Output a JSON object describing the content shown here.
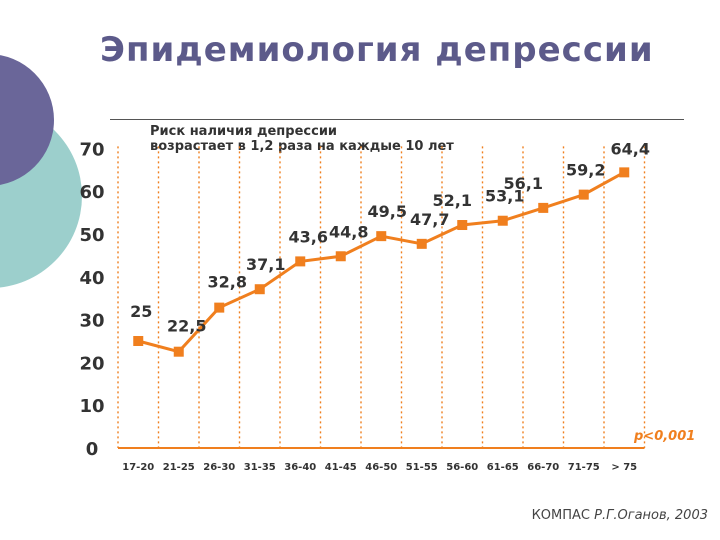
{
  "colors": {
    "accent": "#f07f1e",
    "deco_purple": "#6a6699",
    "deco_teal": "#9ccfcc",
    "title": "#5c5a8a",
    "text": "#333333"
  },
  "slide": {
    "title": "Эпидемиология депрессии",
    "note_line1": "Риск наличия депрессии",
    "note_line2": "возрастает в 1,2 раза на каждые 10 лет",
    "p_value": "p<0,001",
    "source_prefix": "КОМПАС",
    "source_author": "Р.Г.Оганов, 2003"
  },
  "chart_data": {
    "type": "line",
    "title": "",
    "xlabel": "",
    "ylabel": "",
    "ylim": [
      0,
      70
    ],
    "yticks": [
      0,
      10,
      20,
      30,
      40,
      50,
      60,
      70
    ],
    "grid": "vertical dotted",
    "categories": [
      "17-20",
      "21-25",
      "26-30",
      "31-35",
      "36-40",
      "41-45",
      "46-50",
      "51-55",
      "56-60",
      "61-65",
      "66-70",
      "71-75",
      "> 75"
    ],
    "values": [
      25,
      22.5,
      32.8,
      37.1,
      43.6,
      44.8,
      49.5,
      47.7,
      52.1,
      53.1,
      56.1,
      59.2,
      64.4
    ],
    "value_labels": [
      "25",
      "22,5",
      "32,8",
      "37,1",
      "43,6",
      "44,8",
      "49,5",
      "47,7",
      "52,1",
      "53,1",
      "56,1",
      "59,2",
      "64,4"
    ]
  }
}
